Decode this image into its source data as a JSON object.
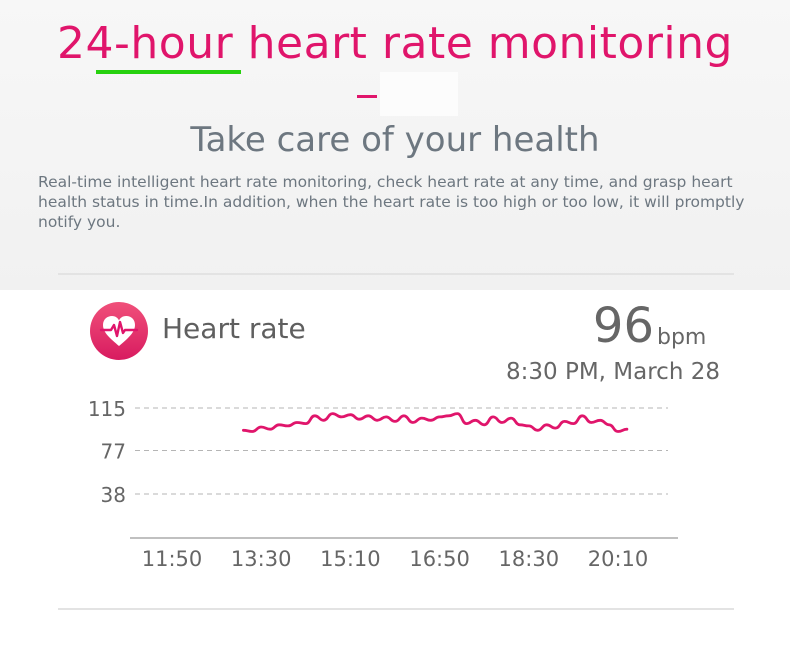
{
  "header": {
    "title": "24-hour heart rate monitoring",
    "dash": "-",
    "subtitle": "Take care of your health",
    "description": "Real-time intelligent heart rate monitoring, check heart rate at any time, and grasp heart health status in time.In addition, when the heart rate is too high or too low, it will promptly notify you."
  },
  "colors": {
    "accent": "#e0156b",
    "highlight": "#27d10f",
    "text_gray": "#6d7780",
    "icon_bg": "#e8336f"
  },
  "card": {
    "icon": "heart-rate-icon",
    "label": "Heart rate",
    "value": "96",
    "unit": "bpm",
    "timestamp": "8:30 PM, March 28"
  },
  "chart_data": {
    "type": "line",
    "x_ticks": [
      "11:50",
      "13:30",
      "15:10",
      "16:50",
      "18:30",
      "20:10"
    ],
    "y_ticks": [
      115,
      77,
      38
    ],
    "grid": "dashed horizontal",
    "series": [
      {
        "x": [
          "13:10",
          "13:20",
          "13:30",
          "13:40",
          "13:50",
          "14:00",
          "14:10",
          "14:20",
          "14:30",
          "14:40",
          "14:50",
          "15:00",
          "15:10",
          "15:20",
          "15:30",
          "15:40",
          "15:50",
          "16:00",
          "16:10",
          "16:20",
          "16:30",
          "16:40",
          "16:50",
          "17:00",
          "17:10",
          "17:20",
          "17:30",
          "17:40",
          "17:50",
          "18:00",
          "18:10",
          "18:20",
          "18:30",
          "18:40",
          "18:50",
          "19:00",
          "19:10",
          "19:20",
          "19:30",
          "19:40",
          "19:50",
          "20:00",
          "20:10",
          "20:20"
        ],
        "values": [
          95,
          94,
          98,
          96,
          100,
          99,
          102,
          101,
          108,
          104,
          110,
          107,
          109,
          105,
          108,
          104,
          107,
          103,
          108,
          102,
          106,
          104,
          107,
          108,
          110,
          101,
          104,
          100,
          107,
          102,
          106,
          100,
          99,
          95,
          100,
          97,
          103,
          101,
          108,
          102,
          104,
          100,
          94,
          96
        ]
      }
    ]
  }
}
